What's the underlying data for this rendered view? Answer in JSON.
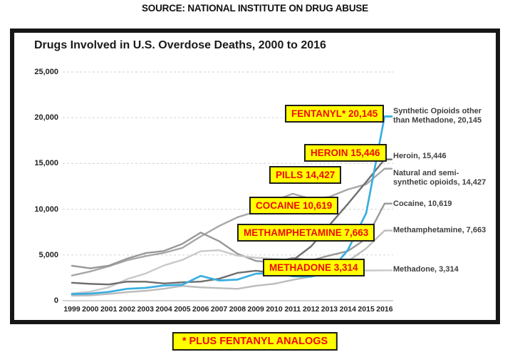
{
  "page": {
    "source_header": "SOURCE: NATIONAL INSTITUTE ON DRUG ABUSE"
  },
  "chart": {
    "title": "Drugs Involved in U.S. Overdose Deaths, 2000 to 2016",
    "footnote": "* PLUS FENTANYL ANALOGS",
    "callouts": {
      "fentanyl": "FENTANYL* 20,145",
      "heroin": "HEROIN 15,446",
      "pills": "PILLS 14,427",
      "cocaine": "COCAINE 10,619",
      "methamphetamine": "METHAMPHETAMINE 7,663",
      "methadone": "METHADONE 3,314"
    },
    "series_labels": {
      "synthetic": "Synthetic Opioids other\nthan Methadone, 20,145",
      "heroin": "Heroin, 15,446",
      "natural": "Natural and semi-\nsynthetic opioids, 14,427",
      "cocaine": "Cocaine, 10,619",
      "methamphetamine": "Methamphetamine, 7,663",
      "methadone": "Methadone, 3,314"
    },
    "colors": {
      "highlight_background": "#ffff00",
      "highlight_text": "#ee0a0a",
      "frame_border": "#161616"
    }
  },
  "chart_data": {
    "type": "line",
    "title": "Drugs Involved in U.S. Overdose Deaths, 2000 to 2016",
    "xlabel": "",
    "ylabel": "",
    "x": [
      1999,
      2000,
      2001,
      2002,
      2003,
      2004,
      2005,
      2006,
      2007,
      2008,
      2009,
      2010,
      2011,
      2012,
      2013,
      2014,
      2015,
      2016
    ],
    "y_ticks": [
      "0",
      "5,000",
      "10,000",
      "15,000",
      "20,000",
      "25,000"
    ],
    "ylim": [
      0,
      25000
    ],
    "grid": "horizontal-dashed",
    "legend_position": "right-of-lines",
    "series": [
      {
        "id": "synthetic-opioids",
        "name": "Synthetic Opioids other than Methadone",
        "final_value": 20145,
        "color": "#39aee0",
        "values": [
          730,
          780,
          960,
          1300,
          1400,
          1660,
          1740,
          2710,
          2210,
          2310,
          2950,
          3010,
          2670,
          2630,
          3110,
          5540,
          9580,
          20145
        ]
      },
      {
        "id": "heroin",
        "name": "Heroin",
        "final_value": 15446,
        "color": "#6e6e6e",
        "values": [
          1960,
          1840,
          1780,
          2090,
          2080,
          1880,
          2010,
          2090,
          2400,
          3040,
          3280,
          3040,
          4400,
          5930,
          8260,
          10570,
          12990,
          15446
        ]
      },
      {
        "id": "natural-semi-synthetic-opioids",
        "name": "Natural and semi-synthetic opioids",
        "final_value": 14427,
        "color": "#a6a6a6",
        "values": [
          2750,
          3200,
          3760,
          4420,
          4870,
          5230,
          5770,
          7020,
          8160,
          9120,
          9740,
          10940,
          11690,
          11140,
          11350,
          12160,
          12730,
          14427
        ]
      },
      {
        "id": "cocaine",
        "name": "Cocaine",
        "final_value": 10619,
        "color": "#989898",
        "values": [
          3820,
          3540,
          3830,
          4600,
          5200,
          5440,
          6210,
          7450,
          6510,
          5130,
          4350,
          4180,
          4680,
          4400,
          4940,
          5420,
          6780,
          10619
        ]
      },
      {
        "id": "methamphetamine",
        "name": "Methamphetamine",
        "final_value": 7663,
        "color": "#bcbcbc",
        "values": [
          550,
          580,
          740,
          940,
          1080,
          1310,
          1610,
          1460,
          1380,
          1300,
          1630,
          1850,
          2270,
          2640,
          3630,
          4300,
          5720,
          7663
        ]
      },
      {
        "id": "methadone",
        "name": "Methadone",
        "final_value": 3314,
        "color": "#c9c9c9",
        "values": [
          780,
          990,
          1460,
          2360,
          2970,
          3850,
          4460,
          5410,
          5520,
          4920,
          4700,
          4580,
          4420,
          3930,
          3590,
          3400,
          3300,
          3314
        ]
      }
    ]
  }
}
